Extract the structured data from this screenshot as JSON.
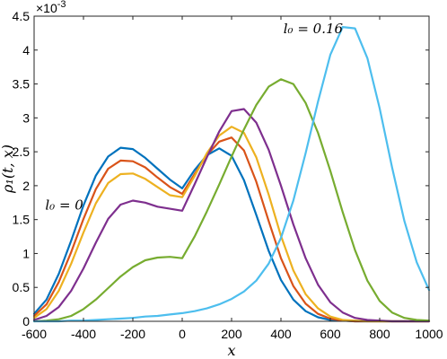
{
  "chart_data": {
    "type": "line",
    "xlabel": "x",
    "ylabel": "ρ₁(t, x)",
    "xlim": [
      -600,
      1000
    ],
    "ylim": [
      0,
      0.0045
    ],
    "x_ticks": [
      -600,
      -400,
      -200,
      0,
      200,
      400,
      600,
      800,
      1000
    ],
    "x_tick_labels": [
      "-600",
      "-400",
      "-200",
      "0",
      "200",
      "400",
      "600",
      "800",
      "1000"
    ],
    "y_ticks": [
      0,
      0.0005,
      0.001,
      0.0015,
      0.002,
      0.0025,
      0.003,
      0.0035,
      0.004,
      0.0045
    ],
    "y_tick_labels": [
      "0",
      "0.5",
      "1",
      "1.5",
      "2",
      "2.5",
      "3",
      "3.5",
      "4",
      "4.5"
    ],
    "y_exponent_base": "×10",
    "y_exponent_power": "-3",
    "grid": false,
    "annotations": [
      {
        "text": "l₀ = 0",
        "x": -555,
        "y": 0.00165
      },
      {
        "text": "l₀ = 0.16",
        "x": 410,
        "y": 0.00425
      }
    ],
    "x": [
      -600,
      -550,
      -500,
      -450,
      -400,
      -350,
      -300,
      -250,
      -200,
      -150,
      -100,
      -50,
      0,
      50,
      100,
      150,
      200,
      250,
      300,
      350,
      400,
      450,
      500,
      550,
      600,
      650,
      700,
      750,
      800,
      850,
      900,
      950,
      1000
    ],
    "series": [
      {
        "color": "#0072BD",
        "values": [
          0.00011,
          0.00032,
          0.0007,
          0.00119,
          0.00171,
          0.00215,
          0.00243,
          0.00256,
          0.00254,
          0.00241,
          0.00225,
          0.00209,
          0.00196,
          0.00223,
          0.00245,
          0.00255,
          0.00244,
          0.00208,
          0.00157,
          0.00104,
          0.00061,
          0.00032,
          0.00015,
          6e-05,
          2e-05,
          1e-05,
          0,
          0,
          0,
          0,
          0,
          0,
          0
        ]
      },
      {
        "color": "#D95319",
        "values": [
          8e-05,
          0.00025,
          0.00058,
          0.00102,
          0.00151,
          0.00195,
          0.00225,
          0.00237,
          0.00236,
          0.00227,
          0.00212,
          0.00198,
          0.00188,
          0.00217,
          0.00245,
          0.00265,
          0.00271,
          0.00252,
          0.00206,
          0.00148,
          0.00093,
          0.00052,
          0.00026,
          0.00011,
          4e-05,
          1e-05,
          0,
          0,
          0,
          0,
          0,
          0,
          0
        ]
      },
      {
        "color": "#EDB120",
        "values": [
          5e-05,
          0.00018,
          0.00045,
          0.00085,
          0.00131,
          0.00174,
          0.00204,
          0.00217,
          0.00218,
          0.0021,
          0.00198,
          0.00186,
          0.00183,
          0.00214,
          0.00248,
          0.00274,
          0.00287,
          0.00278,
          0.00242,
          0.00187,
          0.00126,
          0.00075,
          0.0004,
          0.00019,
          7e-05,
          2e-05,
          1e-05,
          0,
          0,
          0,
          0,
          0,
          0
        ]
      },
      {
        "color": "#7E2F8E",
        "values": [
          2e-05,
          8e-05,
          0.00021,
          0.00045,
          0.00078,
          0.00116,
          0.00151,
          0.00172,
          0.00178,
          0.00175,
          0.00169,
          0.00166,
          0.00163,
          0.00202,
          0.00242,
          0.0028,
          0.0031,
          0.00313,
          0.00293,
          0.00253,
          0.002,
          0.00143,
          0.00093,
          0.00054,
          0.00028,
          0.00013,
          5e-05,
          2e-05,
          1e-05,
          0,
          0,
          0,
          0
        ]
      },
      {
        "color": "#77AC30",
        "values": [
          0,
          1e-05,
          3e-05,
          8e-05,
          0.00018,
          0.00032,
          0.00049,
          0.00066,
          0.0008,
          0.0009,
          0.00094,
          0.00095,
          0.00093,
          0.00125,
          0.00162,
          0.00202,
          0.00243,
          0.00283,
          0.00319,
          0.00346,
          0.00357,
          0.0035,
          0.00322,
          0.00278,
          0.00222,
          0.00161,
          0.00105,
          0.0006,
          0.0003,
          0.00013,
          5e-05,
          2e-05,
          1e-05
        ]
      },
      {
        "color": "#4DBEEE",
        "values": [
          0,
          0,
          0,
          1e-05,
          1e-05,
          2e-05,
          3e-05,
          4e-05,
          5e-05,
          7e-05,
          8e-05,
          0.0001,
          0.00012,
          0.00015,
          0.00019,
          0.00025,
          0.00033,
          0.00044,
          0.0006,
          0.00085,
          0.00123,
          0.00178,
          0.00248,
          0.00324,
          0.00393,
          0.00434,
          0.00432,
          0.00388,
          0.00314,
          0.00227,
          0.00148,
          0.00087,
          0.00046
        ]
      }
    ]
  }
}
